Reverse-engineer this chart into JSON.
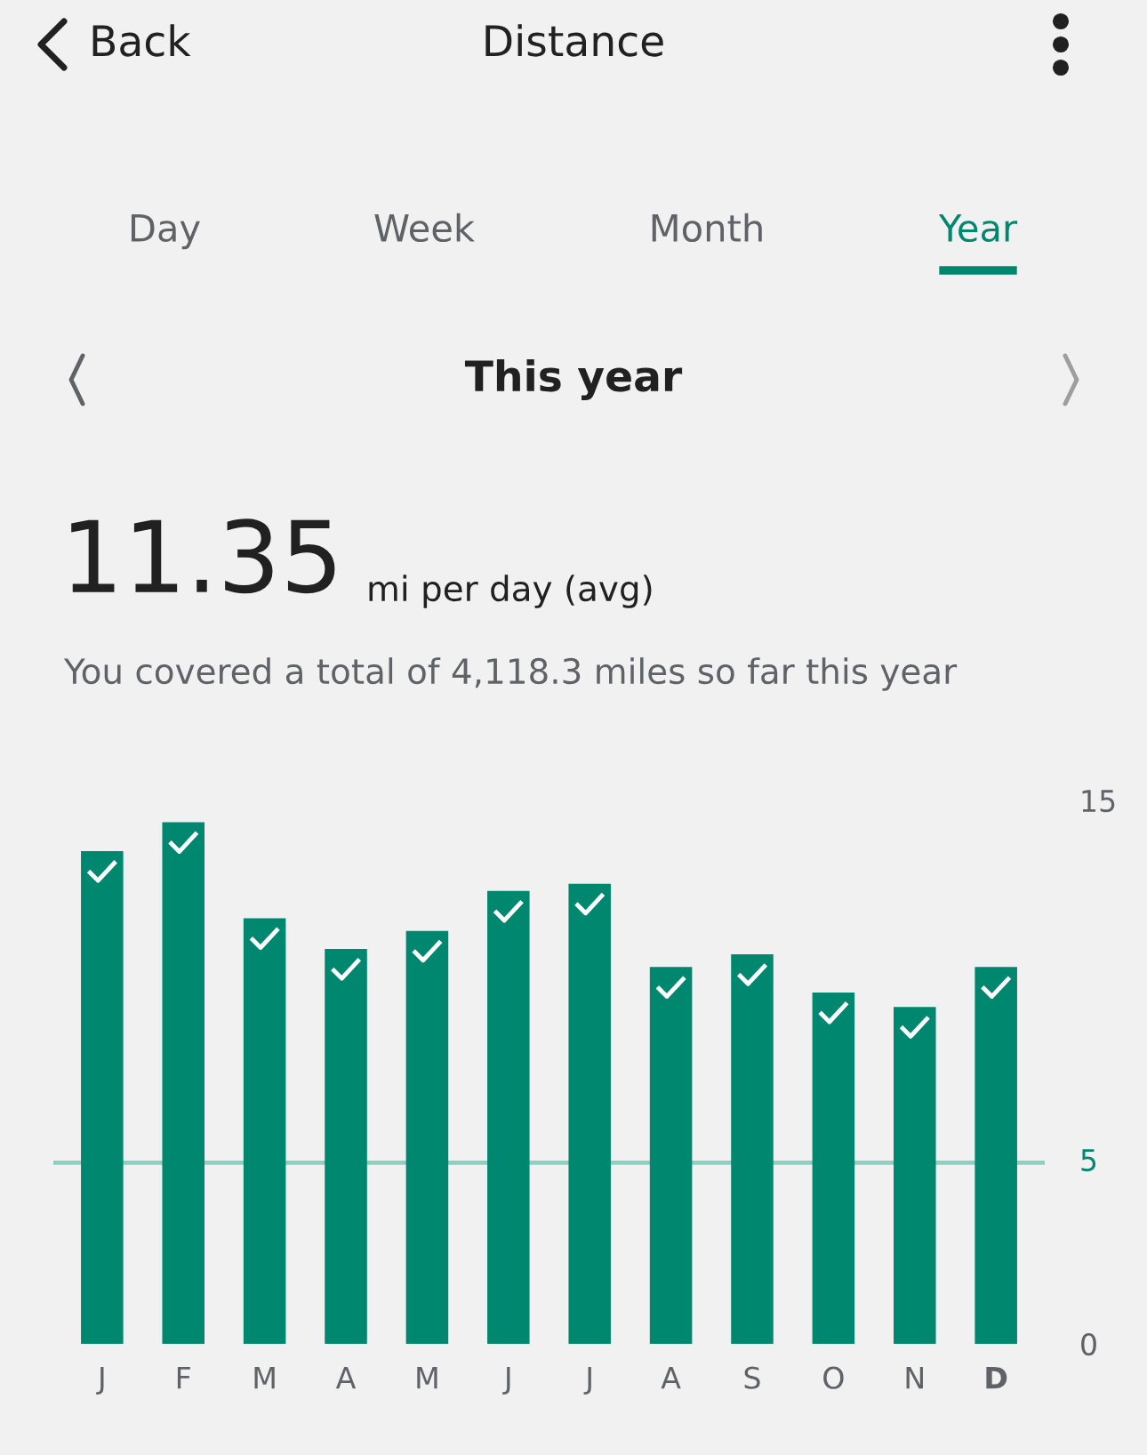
{
  "chart_data": {
    "type": "bar",
    "title": "Distance",
    "annotations": [
      "Back",
      "Day",
      "Week",
      "Month",
      "Year",
      "This year",
      "11.35",
      "mi per day (avg)",
      "You covered a total of 4,118.3 miles so far this year"
    ],
    "categories": [
      "J",
      "F",
      "M",
      "A",
      "M",
      "J",
      "J",
      "A",
      "S",
      "O",
      "N",
      "D"
    ],
    "values": [
      13.6,
      14.4,
      11.75,
      10.9,
      11.4,
      12.5,
      12.7,
      10.4,
      10.75,
      9.7,
      9.3,
      10.4
    ],
    "color": "#00876f",
    "ylim": [
      0,
      15
    ],
    "yticks": [
      0,
      15
    ],
    "ref_lines": [
      {
        "axis": "y",
        "value": 5,
        "label": "5",
        "color": "#8fcfc0"
      }
    ],
    "grid": false,
    "legend": false
  }
}
